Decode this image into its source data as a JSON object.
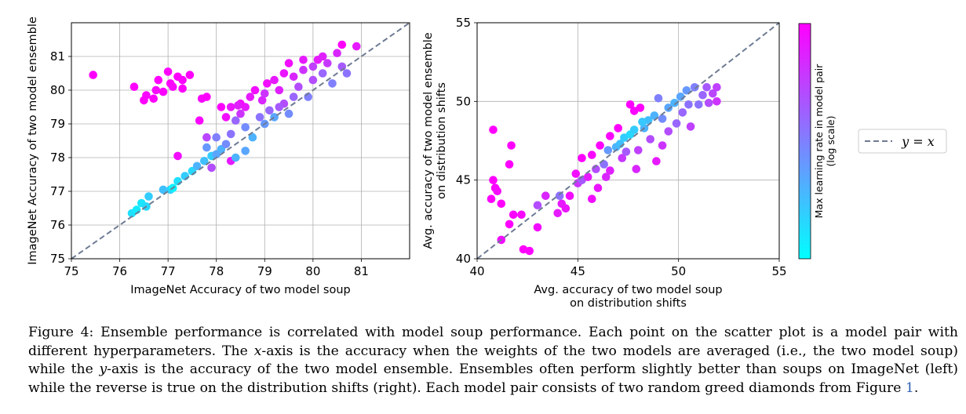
{
  "chart_data": [
    {
      "type": "scatter",
      "xlabel": "ImageNet Accuracy of two model soup",
      "ylabel": "ImageNet Accuracy of two model ensemble",
      "xlim": [
        75,
        82
      ],
      "ylim": [
        75,
        82
      ],
      "xticks": [
        75,
        76,
        77,
        78,
        79,
        80,
        81
      ],
      "yticks": [
        75,
        76,
        77,
        78,
        79,
        80,
        81
      ],
      "grid": true,
      "reference_line": "y = x",
      "points": [
        [
          75.45,
          80.45,
          1.0
        ],
        [
          76.3,
          80.1,
          1.0
        ],
        [
          76.5,
          79.7,
          1.0
        ],
        [
          76.55,
          79.85,
          0.98
        ],
        [
          76.7,
          79.75,
          1.0
        ],
        [
          76.75,
          80.0,
          0.97
        ],
        [
          76.8,
          80.3,
          1.0
        ],
        [
          76.9,
          79.95,
          0.99
        ],
        [
          77.0,
          80.55,
          1.0
        ],
        [
          77.05,
          80.2,
          1.0
        ],
        [
          77.1,
          80.1,
          0.98
        ],
        [
          77.2,
          80.4,
          1.0
        ],
        [
          77.3,
          80.3,
          0.99
        ],
        [
          77.45,
          80.45,
          1.0
        ],
        [
          77.3,
          80.05,
          1.0
        ],
        [
          77.7,
          79.75,
          0.97
        ],
        [
          77.8,
          79.8,
          1.0
        ],
        [
          77.65,
          79.1,
          0.98
        ],
        [
          76.25,
          76.35,
          0.12
        ],
        [
          76.35,
          76.45,
          0.08
        ],
        [
          76.45,
          76.65,
          0.1
        ],
        [
          76.55,
          76.55,
          0.15
        ],
        [
          76.6,
          76.85,
          0.2
        ],
        [
          76.9,
          77.05,
          0.25
        ],
        [
          77.05,
          77.05,
          0.18
        ],
        [
          77.1,
          77.1,
          0.05
        ],
        [
          77.2,
          77.3,
          0.12
        ],
        [
          77.2,
          78.05,
          0.95
        ],
        [
          77.35,
          77.45,
          0.2
        ],
        [
          77.5,
          77.6,
          0.15
        ],
        [
          77.6,
          77.75,
          0.3
        ],
        [
          77.75,
          77.9,
          0.25
        ],
        [
          77.9,
          78.05,
          0.2
        ],
        [
          78.0,
          78.1,
          0.35
        ],
        [
          78.1,
          78.25,
          0.3
        ],
        [
          77.9,
          77.7,
          0.7
        ],
        [
          77.8,
          78.3,
          0.4
        ],
        [
          78.3,
          77.9,
          0.9
        ],
        [
          78.2,
          78.4,
          0.45
        ],
        [
          78.0,
          78.6,
          0.5
        ],
        [
          78.3,
          78.7,
          0.55
        ],
        [
          78.4,
          79.1,
          0.6
        ],
        [
          78.5,
          79.3,
          0.8
        ],
        [
          78.6,
          79.5,
          0.9
        ],
        [
          78.5,
          79.6,
          0.95
        ],
        [
          78.7,
          79.8,
          0.9
        ],
        [
          78.8,
          80.0,
          0.95
        ],
        [
          78.6,
          78.9,
          0.45
        ],
        [
          78.75,
          78.6,
          0.3
        ],
        [
          78.9,
          79.2,
          0.55
        ],
        [
          79.0,
          79.0,
          0.4
        ],
        [
          78.95,
          79.7,
          0.85
        ],
        [
          79.05,
          80.2,
          0.95
        ],
        [
          79.2,
          80.3,
          0.9
        ],
        [
          79.3,
          80.0,
          0.88
        ],
        [
          79.1,
          79.4,
          0.6
        ],
        [
          79.2,
          79.2,
          0.35
        ],
        [
          79.4,
          79.6,
          0.7
        ],
        [
          79.4,
          80.5,
          0.92
        ],
        [
          79.6,
          80.4,
          0.85
        ],
        [
          79.5,
          79.3,
          0.45
        ],
        [
          79.6,
          79.8,
          0.6
        ],
        [
          79.8,
          80.6,
          0.8
        ],
        [
          79.7,
          80.1,
          0.7
        ],
        [
          79.9,
          79.8,
          0.5
        ],
        [
          80.0,
          80.3,
          0.7
        ],
        [
          80.1,
          80.9,
          0.9
        ],
        [
          80.0,
          80.7,
          0.75
        ],
        [
          80.2,
          80.5,
          0.6
        ],
        [
          80.3,
          80.8,
          0.78
        ],
        [
          80.4,
          80.2,
          0.5
        ],
        [
          80.5,
          81.1,
          0.85
        ],
        [
          80.6,
          80.7,
          0.65
        ],
        [
          80.7,
          80.5,
          0.55
        ],
        [
          80.6,
          81.35,
          1.0
        ],
        [
          80.9,
          81.3,
          0.9
        ],
        [
          79.0,
          79.9,
          0.8
        ],
        [
          78.4,
          78.0,
          0.3
        ],
        [
          78.6,
          78.2,
          0.35
        ],
        [
          79.3,
          79.5,
          0.65
        ],
        [
          79.8,
          80.9,
          0.9
        ],
        [
          80.2,
          81.0,
          0.88
        ],
        [
          79.5,
          80.8,
          0.95
        ],
        [
          78.2,
          79.2,
          0.95
        ],
        [
          78.1,
          79.5,
          1.0
        ],
        [
          78.3,
          79.5,
          0.92
        ],
        [
          77.8,
          78.6,
          0.72
        ],
        [
          78.45,
          79.55,
          0.88
        ]
      ]
    },
    {
      "type": "scatter",
      "xlabel": [
        "Avg. accuracy of two model soup",
        "on distribution shifts"
      ],
      "ylabel": [
        "Avg. accuracy of two model ensemble",
        "on distribution shifts"
      ],
      "xlim": [
        40,
        55
      ],
      "ylim": [
        40,
        55
      ],
      "xticks": [
        40,
        45,
        50,
        55
      ],
      "yticks": [
        40,
        45,
        50,
        55
      ],
      "grid": true,
      "reference_line": "y = x",
      "points": [
        [
          40.8,
          48.2,
          1.0
        ],
        [
          40.8,
          45.0,
          1.0
        ],
        [
          40.9,
          44.5,
          0.98
        ],
        [
          40.7,
          43.8,
          1.0
        ],
        [
          41.0,
          44.3,
          0.97
        ],
        [
          41.2,
          43.5,
          1.0
        ],
        [
          41.2,
          41.2,
          0.95
        ],
        [
          41.6,
          46.0,
          1.0
        ],
        [
          41.7,
          47.2,
          1.0
        ],
        [
          41.8,
          42.8,
          0.98
        ],
        [
          41.6,
          42.2,
          1.0
        ],
        [
          42.2,
          42.8,
          0.97
        ],
        [
          42.3,
          40.6,
          1.0
        ],
        [
          42.6,
          40.5,
          0.99
        ],
        [
          43.0,
          43.4,
          0.7
        ],
        [
          43.0,
          42.0,
          0.95
        ],
        [
          43.4,
          44.0,
          0.85
        ],
        [
          44.1,
          44.0,
          0.55
        ],
        [
          44.2,
          43.5,
          0.9
        ],
        [
          44.6,
          44.0,
          0.95
        ],
        [
          44.9,
          45.4,
          0.95
        ],
        [
          45.0,
          44.8,
          0.8
        ],
        [
          45.2,
          45.0,
          0.65
        ],
        [
          45.2,
          46.4,
          1.0
        ],
        [
          45.5,
          45.2,
          0.9
        ],
        [
          45.7,
          46.6,
          0.98
        ],
        [
          45.9,
          45.7,
          0.7
        ],
        [
          46.1,
          47.2,
          1.0
        ],
        [
          46.0,
          44.5,
          0.92
        ],
        [
          46.3,
          46.0,
          0.55
        ],
        [
          46.5,
          46.9,
          0.4
        ],
        [
          46.6,
          47.8,
          0.98
        ],
        [
          46.6,
          45.6,
          0.88
        ],
        [
          46.9,
          47.1,
          0.3
        ],
        [
          47.1,
          47.3,
          0.25
        ],
        [
          47.0,
          48.3,
          1.0
        ],
        [
          47.2,
          46.4,
          0.78
        ],
        [
          47.3,
          47.7,
          0.2
        ],
        [
          47.6,
          47.9,
          0.15
        ],
        [
          47.8,
          48.2,
          0.2
        ],
        [
          47.6,
          49.8,
          1.0
        ],
        [
          47.8,
          49.4,
          0.98
        ],
        [
          48.1,
          49.6,
          1.0
        ],
        [
          48.0,
          46.9,
          0.75
        ],
        [
          48.3,
          48.3,
          0.3
        ],
        [
          48.5,
          48.8,
          0.25
        ],
        [
          48.6,
          47.6,
          0.7
        ],
        [
          48.8,
          49.1,
          0.3
        ],
        [
          48.9,
          46.2,
          0.9
        ],
        [
          49.2,
          48.9,
          0.45
        ],
        [
          49.2,
          47.2,
          0.8
        ],
        [
          49.5,
          49.6,
          0.35
        ],
        [
          49.5,
          48.1,
          0.7
        ],
        [
          49.8,
          49.9,
          0.3
        ],
        [
          49.9,
          48.6,
          0.6
        ],
        [
          50.1,
          50.3,
          0.35
        ],
        [
          50.2,
          49.3,
          0.6
        ],
        [
          50.4,
          50.7,
          0.4
        ],
        [
          50.5,
          49.8,
          0.55
        ],
        [
          50.6,
          48.4,
          0.75
        ],
        [
          50.8,
          50.9,
          0.5
        ],
        [
          51.0,
          49.8,
          0.55
        ],
        [
          51.2,
          50.4,
          0.6
        ],
        [
          51.4,
          50.9,
          0.65
        ],
        [
          51.5,
          49.9,
          0.7
        ],
        [
          51.7,
          50.5,
          0.72
        ],
        [
          51.9,
          50.9,
          0.75
        ],
        [
          51.9,
          50.0,
          0.8
        ],
        [
          46.4,
          45.2,
          0.85
        ],
        [
          47.4,
          46.8,
          0.65
        ],
        [
          49.0,
          50.2,
          0.5
        ],
        [
          48.2,
          48.7,
          0.22
        ],
        [
          44.4,
          43.2,
          0.92
        ],
        [
          44.0,
          42.9,
          0.9
        ],
        [
          45.7,
          43.8,
          0.95
        ],
        [
          47.9,
          45.7,
          0.85
        ]
      ]
    }
  ],
  "colorbar": {
    "label_line1": "Max learning rate in model pair",
    "label_line2": "(log scale)",
    "color_low": "#00ffff",
    "color_high": "#ff00ff"
  },
  "legend": {
    "label": "y = x",
    "line_color": "#6e7b93"
  },
  "caption": {
    "prefix": "Figure 4:",
    "text": "Ensemble performance is correlated with model soup performance. Each point on the scatter plot is a model pair with different hyperparameters. The ",
    "x_var": "x",
    "text2": "-axis is the accuracy when the weights of the two models are averaged (i.e., the two model soup) while the ",
    "y_var": "y",
    "text3": "-axis is the accuracy of the two model ensemble. Ensembles often perform slightly better than soups on ImageNet (left) while the reverse is true on the distribution shifts (right). Each model pair consists of two random greed diamonds from Figure ",
    "figure_ref": "1",
    "text4": "."
  }
}
